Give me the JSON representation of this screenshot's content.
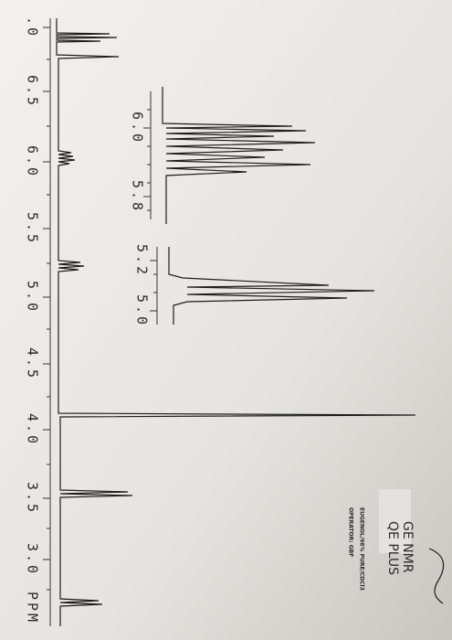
{
  "header": {
    "title": "GE NMR",
    "subtitle": "QE PLUS",
    "sample": "EUGENOL/98% PURE/CDCl3",
    "operator": "OPERATOR: GBF"
  },
  "main_axis": {
    "ticks": [
      ".0",
      "6.5",
      "6.0",
      "5.5",
      "5.0",
      "4.5",
      "4.0",
      "3.5",
      "3.0"
    ],
    "unit": "PPM"
  },
  "inset_axis_1": {
    "ticks": [
      "6.0",
      "5.8"
    ]
  },
  "inset_axis_2": {
    "ticks": [
      "5.2",
      "5.0"
    ]
  }
}
